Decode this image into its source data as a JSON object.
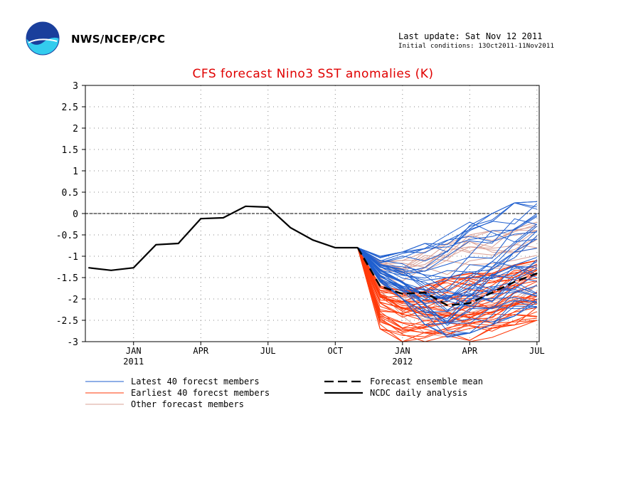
{
  "header": {
    "org": "NWS/NCEP/CPC",
    "last_update": "Last update: Sat Nov 12 2011",
    "initial_conditions": "Initial conditions: 13Oct2011-11Nov2011",
    "logo_text": "NOAA"
  },
  "colors": {
    "latest": "#1f5fcf",
    "earliest": "#ff3a0a",
    "other": "#d9a096",
    "analysis": "#000000",
    "title": "#e00000",
    "accent_logo_dark": "#1a3f9c",
    "accent_logo_light": "#33ccee"
  },
  "chart_data": {
    "type": "line",
    "title": "CFS forecast Nino3 SST anomalies (K)",
    "ylim": [
      -3,
      3
    ],
    "yticks": [
      3,
      2.5,
      2,
      1.5,
      1,
      0.5,
      0,
      -0.5,
      -1,
      -1.5,
      -2,
      -2.5,
      -3
    ],
    "ytick_labels": [
      "3",
      "2.5",
      "2",
      "1.5",
      "1",
      "0.5",
      "0",
      "-0.5",
      "-1",
      "-1.5",
      "-2",
      "-2.5",
      "-3"
    ],
    "xlim": [
      "2010-11",
      "2012-08"
    ],
    "xticks": [
      {
        "date": "2011-01",
        "label": "JAN",
        "year": "2011"
      },
      {
        "date": "2011-04",
        "label": "APR",
        "year": ""
      },
      {
        "date": "2011-07",
        "label": "JUL",
        "year": ""
      },
      {
        "date": "2011-10",
        "label": "OCT",
        "year": ""
      },
      {
        "date": "2012-01",
        "label": "JAN",
        "year": "2012"
      },
      {
        "date": "2012-04",
        "label": "APR",
        "year": ""
      },
      {
        "date": "2012-07",
        "label": "JUL",
        "year": ""
      }
    ],
    "grid": true,
    "zero_line": true,
    "legend_position": "bottom",
    "legend": [
      {
        "key": "latest",
        "label": "Latest 40 forecst members",
        "style": "solid-thin",
        "color": "#1f5fcf"
      },
      {
        "key": "earliest",
        "label": "Earliest 40 forecst members",
        "style": "solid-thin",
        "color": "#ff3a0a"
      },
      {
        "key": "other",
        "label": "Other forecast members",
        "style": "solid-thin",
        "color": "#d9a096"
      },
      {
        "key": "mean",
        "label": "Forecast ensemble mean",
        "style": "dashed-thick",
        "color": "#000000"
      },
      {
        "key": "analysis",
        "label": "NCDC daily analysis",
        "style": "solid-thick",
        "color": "#000000"
      }
    ],
    "forecast_start": {
      "date": "2011-11",
      "value": -0.8
    },
    "ncdc_daily_analysis": {
      "x": [
        "2010-11",
        "2010-12",
        "2011-01",
        "2011-02",
        "2011-03",
        "2011-04",
        "2011-05",
        "2011-06",
        "2011-07",
        "2011-08",
        "2011-09",
        "2011-10",
        "2011-11"
      ],
      "values": [
        -1.27,
        -1.33,
        -1.27,
        -0.73,
        -0.7,
        -0.12,
        -0.1,
        0.17,
        0.15,
        -0.33,
        -0.62,
        -0.8,
        -0.8
      ]
    },
    "forecast_ensemble_mean": {
      "x": [
        "2011-11",
        "2011-12",
        "2012-01",
        "2012-02",
        "2012-03",
        "2012-04",
        "2012-05",
        "2012-06",
        "2012-07"
      ],
      "values": [
        -0.8,
        -1.7,
        -1.88,
        -1.85,
        -2.15,
        -2.1,
        -1.85,
        -1.6,
        -1.4
      ]
    },
    "member_groups": {
      "x": [
        "2011-11",
        "2011-12",
        "2012-01",
        "2012-02",
        "2012-03",
        "2012-04",
        "2012-05",
        "2012-06",
        "2012-07"
      ],
      "latest": {
        "count": 40,
        "low": [
          -0.8,
          -1.6,
          -2.0,
          -2.6,
          -2.9,
          -2.8,
          -2.6,
          -2.4,
          -2.2
        ],
        "high": [
          -0.8,
          -1.0,
          -0.9,
          -0.7,
          -0.5,
          -0.2,
          0.0,
          0.25,
          0.28
        ]
      },
      "earliest": {
        "count": 40,
        "low": [
          -0.8,
          -2.7,
          -3.0,
          -3.0,
          -3.0,
          -3.0,
          -2.9,
          -2.7,
          -2.5
        ],
        "high": [
          -0.8,
          -1.7,
          -1.8,
          -1.7,
          -1.5,
          -1.4,
          -1.4,
          -1.2,
          -1.1
        ]
      },
      "other": {
        "count": 20,
        "low": [
          -0.8,
          -1.8,
          -2.4,
          -2.8,
          -2.9,
          -2.8,
          -2.5,
          -2.3,
          -2.1
        ],
        "high": [
          -0.8,
          -1.1,
          -1.1,
          -0.9,
          -0.7,
          -0.5,
          -0.4,
          -0.25,
          -0.2
        ]
      }
    }
  }
}
